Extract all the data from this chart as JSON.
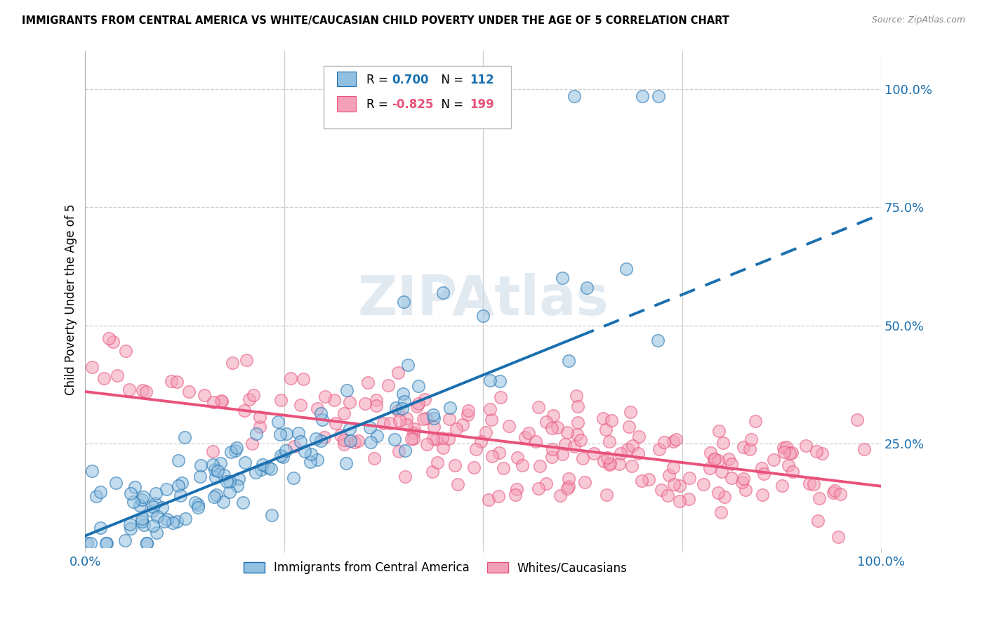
{
  "title": "IMMIGRANTS FROM CENTRAL AMERICA VS WHITE/CAUCASIAN CHILD POVERTY UNDER THE AGE OF 5 CORRELATION CHART",
  "source": "Source: ZipAtlas.com",
  "ylabel": "Child Poverty Under the Age of 5",
  "ytick_labels": [
    "25.0%",
    "50.0%",
    "75.0%",
    "100.0%"
  ],
  "ytick_values": [
    0.25,
    0.5,
    0.75,
    1.0
  ],
  "legend_R1": "0.700",
  "legend_N1": "112",
  "legend_R2": "-0.825",
  "legend_N2": "199",
  "blue_color": "#92c0e0",
  "pink_color": "#f4a0b8",
  "blue_line_color": "#1a6faf",
  "pink_line_color": "#e8527a",
  "blue_line_color_dark": "#1565a8",
  "pink_line_color_dark": "#d43060",
  "watermark": "ZIPAtlas",
  "xlim": [
    0,
    1.0
  ],
  "ylim": [
    0.03,
    1.08
  ]
}
